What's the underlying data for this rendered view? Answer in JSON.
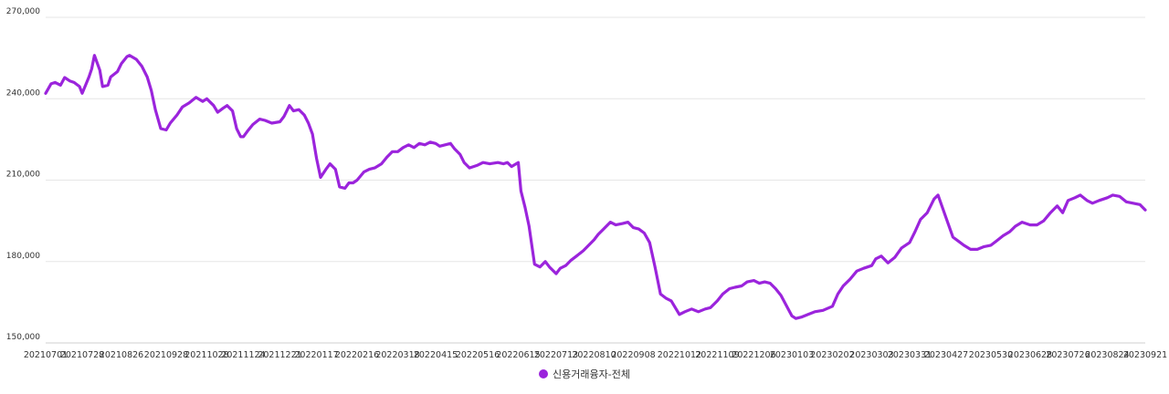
{
  "chart_data": {
    "type": "line",
    "title": "",
    "xlabel": "",
    "ylabel": "",
    "ylim": [
      150000,
      270000
    ],
    "grid": true,
    "legend_position": "bottom",
    "x_tick_labels": [
      "20210701",
      "20210728",
      "20210826",
      "20210928",
      "20211028",
      "20211124",
      "20211221",
      "20220117",
      "20220216",
      "20220318",
      "20220415",
      "20220516",
      "20220615",
      "20220713",
      "20220810",
      "20220908",
      "20221012",
      "20221109",
      "20221206",
      "20230103",
      "20230202",
      "20230303",
      "20230331",
      "20230427",
      "20230530",
      "20230628",
      "20230726",
      "20230824",
      "20230921"
    ],
    "y_tick_labels": [
      "270,000",
      "240,000",
      "210,000",
      "180,000",
      "150,000"
    ],
    "y_tick_values": [
      270000,
      240000,
      210000,
      180000,
      150000
    ],
    "series": [
      {
        "name": "신용거래융자-전체",
        "color": "#9b24dc",
        "points": [
          [
            "20210701",
            242000
          ],
          [
            "20210705",
            245500
          ],
          [
            "20210708",
            246000
          ],
          [
            "20210712",
            245000
          ],
          [
            "20210715",
            247800
          ],
          [
            "20210719",
            246500
          ],
          [
            "20210722",
            246000
          ],
          [
            "20210726",
            244500
          ],
          [
            "20210728",
            242000
          ],
          [
            "20210802",
            248000
          ],
          [
            "20210804",
            251000
          ],
          [
            "20210806",
            256000
          ],
          [
            "20210810",
            250500
          ],
          [
            "20210812",
            244500
          ],
          [
            "20210816",
            245000
          ],
          [
            "20210818",
            248000
          ],
          [
            "20210823",
            250000
          ],
          [
            "20210826",
            253000
          ],
          [
            "20210830",
            255500
          ],
          [
            "20210901",
            256000
          ],
          [
            "20210906",
            254500
          ],
          [
            "20210910",
            252000
          ],
          [
            "20210914",
            248000
          ],
          [
            "20210917",
            243000
          ],
          [
            "20210920",
            236000
          ],
          [
            "20210924",
            229000
          ],
          [
            "20210928",
            228500
          ],
          [
            "20211001",
            231000
          ],
          [
            "20211006",
            234000
          ],
          [
            "20211010",
            237000
          ],
          [
            "20211015",
            238500
          ],
          [
            "20211020",
            240500
          ],
          [
            "20211025",
            239000
          ],
          [
            "20211028",
            240000
          ],
          [
            "20211102",
            237500
          ],
          [
            "20211105",
            235000
          ],
          [
            "20211109",
            236500
          ],
          [
            "20211112",
            237500
          ],
          [
            "20211116",
            235500
          ],
          [
            "20211119",
            229000
          ],
          [
            "20211122",
            226000
          ],
          [
            "20211124",
            226000
          ],
          [
            "20211127",
            228000
          ],
          [
            "20211201",
            230500
          ],
          [
            "20211206",
            232500
          ],
          [
            "20211210",
            232000
          ],
          [
            "20211215",
            231000
          ],
          [
            "20211221",
            231500
          ],
          [
            "20211224",
            233500
          ],
          [
            "20211228",
            237500
          ],
          [
            "20211231",
            235500
          ],
          [
            "20220104",
            236000
          ],
          [
            "20220108",
            234000
          ],
          [
            "20220111",
            231000
          ],
          [
            "20220114",
            227000
          ],
          [
            "20220117",
            218000
          ],
          [
            "20220120",
            211000
          ],
          [
            "20220124",
            214000
          ],
          [
            "20220127",
            216000
          ],
          [
            "20220131",
            214000
          ],
          [
            "20220203",
            207500
          ],
          [
            "20220207",
            207000
          ],
          [
            "20220210",
            209000
          ],
          [
            "20220213",
            209000
          ],
          [
            "20220216",
            210000
          ],
          [
            "20220221",
            213000
          ],
          [
            "20220225",
            214000
          ],
          [
            "20220301",
            214500
          ],
          [
            "20220306",
            216000
          ],
          [
            "20220310",
            218500
          ],
          [
            "20220314",
            220500
          ],
          [
            "20220318",
            220500
          ],
          [
            "20220322",
            222000
          ],
          [
            "20220326",
            223000
          ],
          [
            "20220330",
            222000
          ],
          [
            "20220403",
            223500
          ],
          [
            "20220407",
            223000
          ],
          [
            "20220411",
            224000
          ],
          [
            "20220415",
            223500
          ],
          [
            "20220418",
            222500
          ],
          [
            "20220422",
            223000
          ],
          [
            "20220426",
            223500
          ],
          [
            "20220429",
            221500
          ],
          [
            "20220503",
            219500
          ],
          [
            "20220506",
            216500
          ],
          [
            "20220510",
            214500
          ],
          [
            "20220516",
            215500
          ],
          [
            "20220520",
            216500
          ],
          [
            "20220525",
            216000
          ],
          [
            "20220531",
            216500
          ],
          [
            "20220604",
            216000
          ],
          [
            "20220607",
            216500
          ],
          [
            "20220610",
            215000
          ],
          [
            "20220615",
            216500
          ],
          [
            "20220617",
            206000
          ],
          [
            "20220620",
            200000
          ],
          [
            "20220623",
            193000
          ],
          [
            "20220627",
            179000
          ],
          [
            "20220701",
            178000
          ],
          [
            "20220705",
            180000
          ],
          [
            "20220708",
            178000
          ],
          [
            "20220713",
            175500
          ],
          [
            "20220716",
            177500
          ],
          [
            "20220720",
            178500
          ],
          [
            "20220724",
            180500
          ],
          [
            "20220728",
            182000
          ],
          [
            "20220802",
            184000
          ],
          [
            "20220806",
            186000
          ],
          [
            "20220810",
            188000
          ],
          [
            "20220813",
            190000
          ],
          [
            "20220817",
            192000
          ],
          [
            "20220822",
            194500
          ],
          [
            "20220826",
            193500
          ],
          [
            "20220831",
            194000
          ],
          [
            "20220904",
            194500
          ],
          [
            "20220908",
            192500
          ],
          [
            "20220912",
            192000
          ],
          [
            "20220916",
            190500
          ],
          [
            "20220920",
            187000
          ],
          [
            "20220924",
            178000
          ],
          [
            "20220928",
            168000
          ],
          [
            "20221002",
            166500
          ],
          [
            "20221006",
            165500
          ],
          [
            "20221012",
            160500
          ],
          [
            "20221016",
            161500
          ],
          [
            "20221021",
            162500
          ],
          [
            "20221026",
            161500
          ],
          [
            "20221031",
            162500
          ],
          [
            "20221104",
            163000
          ],
          [
            "20221109",
            165500
          ],
          [
            "20221113",
            168000
          ],
          [
            "20221118",
            170000
          ],
          [
            "20221122",
            170500
          ],
          [
            "20221127",
            171000
          ],
          [
            "20221201",
            172500
          ],
          [
            "20221206",
            173000
          ],
          [
            "20221210",
            172000
          ],
          [
            "20221214",
            172500
          ],
          [
            "20221218",
            172000
          ],
          [
            "20221222",
            170000
          ],
          [
            "20221226",
            167500
          ],
          [
            "20230103",
            160000
          ],
          [
            "20230106",
            159000
          ],
          [
            "20230110",
            159500
          ],
          [
            "20230115",
            160500
          ],
          [
            "20230120",
            161500
          ],
          [
            "20230126",
            162000
          ],
          [
            "20230202",
            163500
          ],
          [
            "20230206",
            168000
          ],
          [
            "20230210",
            171000
          ],
          [
            "20230215",
            173500
          ],
          [
            "20230220",
            176500
          ],
          [
            "20230225",
            177500
          ],
          [
            "20230303",
            178500
          ],
          [
            "20230306",
            181000
          ],
          [
            "20230310",
            182000
          ],
          [
            "20230315",
            179500
          ],
          [
            "20230320",
            181500
          ],
          [
            "20230325",
            185000
          ],
          [
            "20230331",
            187000
          ],
          [
            "20230404",
            191000
          ],
          [
            "20230408",
            195500
          ],
          [
            "20230413",
            198000
          ],
          [
            "20230418",
            203000
          ],
          [
            "20230421",
            204500
          ],
          [
            "20230427",
            196000
          ],
          [
            "20230502",
            189000
          ],
          [
            "20230506",
            187500
          ],
          [
            "20230510",
            186000
          ],
          [
            "20230515",
            184500
          ],
          [
            "20230520",
            184500
          ],
          [
            "20230525",
            185500
          ],
          [
            "20230530",
            186000
          ],
          [
            "20230603",
            187500
          ],
          [
            "20230608",
            189500
          ],
          [
            "20230613",
            191000
          ],
          [
            "20230617",
            193000
          ],
          [
            "20230622",
            194500
          ],
          [
            "20230628",
            193500
          ],
          [
            "20230703",
            193500
          ],
          [
            "20230708",
            195000
          ],
          [
            "20230713",
            198000
          ],
          [
            "20230718",
            200500
          ],
          [
            "20230722",
            198000
          ],
          [
            "20230726",
            202500
          ],
          [
            "20230731",
            203500
          ],
          [
            "20230804",
            204500
          ],
          [
            "20230809",
            202500
          ],
          [
            "20230813",
            201500
          ],
          [
            "20230818",
            202500
          ],
          [
            "20230824",
            203500
          ],
          [
            "20230828",
            204500
          ],
          [
            "20230902",
            204000
          ],
          [
            "20230907",
            202000
          ],
          [
            "20230912",
            201500
          ],
          [
            "20230917",
            201000
          ],
          [
            "20230921",
            199000
          ]
        ]
      }
    ]
  }
}
